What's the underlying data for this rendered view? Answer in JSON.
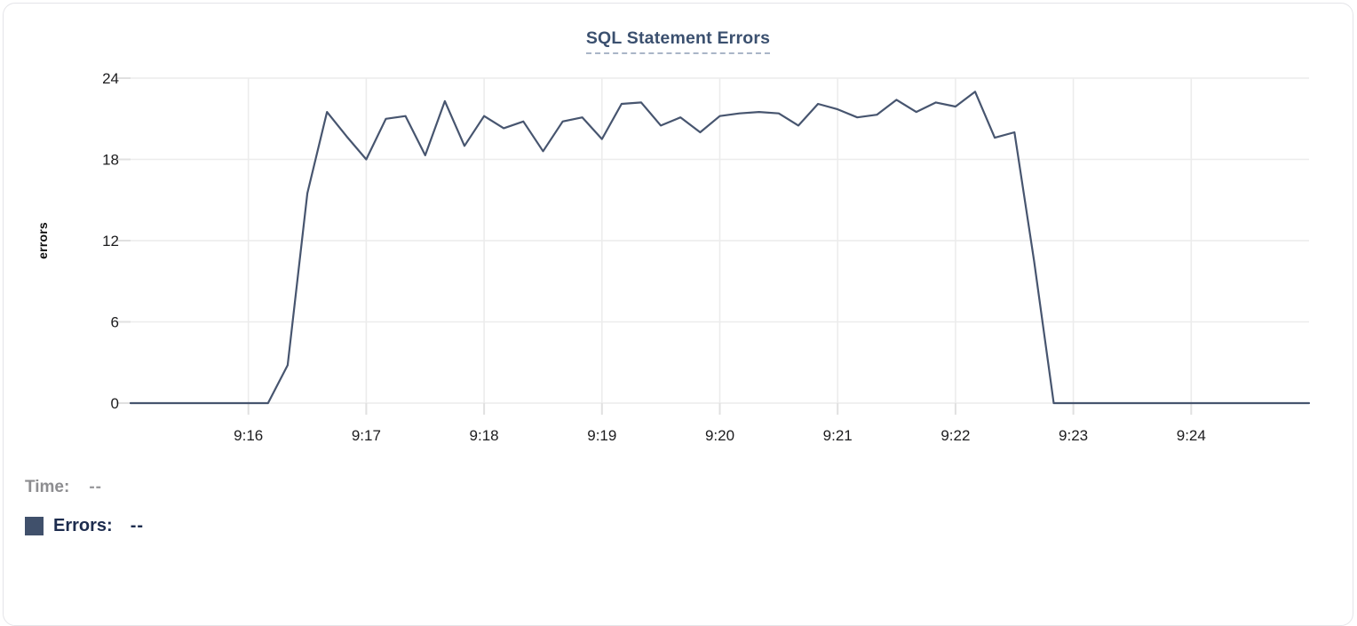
{
  "card": {
    "title": "SQL Statement Errors"
  },
  "legend": {
    "time_label": "Time:",
    "time_value": "--",
    "errors_label": "Errors:",
    "errors_value": "--",
    "swatch_color": "#40506b"
  },
  "colors": {
    "series_line": "#47556f",
    "title_text": "#3b506f",
    "gridline": "#ececec",
    "tick_stub": "#e0e0e0",
    "tick_text": "#1c1c1e"
  },
  "chart_data": {
    "type": "line",
    "title": "SQL Statement Errors",
    "xlabel": "",
    "ylabel": "errors",
    "ylim": [
      0,
      24
    ],
    "yticks": [
      0,
      6,
      12,
      18,
      24
    ],
    "x_tick_labels": [
      "9:16",
      "9:17",
      "9:18",
      "9:19",
      "9:20",
      "9:21",
      "9:22",
      "9:23",
      "9:24"
    ],
    "x_range": [
      "9:15:00",
      "9:25:00"
    ],
    "interval_seconds": 10,
    "grid": true,
    "legend_position": "bottom-left",
    "series_name": "Errors",
    "points": [
      [
        "9:15:00",
        0
      ],
      [
        "9:15:10",
        0
      ],
      [
        "9:15:20",
        0
      ],
      [
        "9:15:30",
        0
      ],
      [
        "9:15:40",
        0
      ],
      [
        "9:15:50",
        0
      ],
      [
        "9:16:00",
        0
      ],
      [
        "9:16:10",
        0
      ],
      [
        "9:16:20",
        2.8
      ],
      [
        "9:16:30",
        15.5
      ],
      [
        "9:16:40",
        21.5
      ],
      [
        "9:16:50",
        19.7
      ],
      [
        "9:17:00",
        18
      ],
      [
        "9:17:10",
        21
      ],
      [
        "9:17:20",
        21.2
      ],
      [
        "9:17:30",
        18.3
      ],
      [
        "9:17:40",
        22.3
      ],
      [
        "9:17:50",
        19
      ],
      [
        "9:18:00",
        21.2
      ],
      [
        "9:18:10",
        20.3
      ],
      [
        "9:18:20",
        20.8
      ],
      [
        "9:18:30",
        18.6
      ],
      [
        "9:18:40",
        20.8
      ],
      [
        "9:18:50",
        21.1
      ],
      [
        "9:19:00",
        19.5
      ],
      [
        "9:19:10",
        22.1
      ],
      [
        "9:19:20",
        22.2
      ],
      [
        "9:19:30",
        20.5
      ],
      [
        "9:19:40",
        21.1
      ],
      [
        "9:19:50",
        20
      ],
      [
        "9:20:00",
        21.2
      ],
      [
        "9:20:10",
        21.4
      ],
      [
        "9:20:20",
        21.5
      ],
      [
        "9:20:30",
        21.4
      ],
      [
        "9:20:40",
        20.5
      ],
      [
        "9:20:50",
        22.1
      ],
      [
        "9:21:00",
        21.7
      ],
      [
        "9:21:10",
        21.1
      ],
      [
        "9:21:20",
        21.3
      ],
      [
        "9:21:30",
        22.4
      ],
      [
        "9:21:40",
        21.5
      ],
      [
        "9:21:50",
        22.2
      ],
      [
        "9:22:00",
        21.9
      ],
      [
        "9:22:10",
        23
      ],
      [
        "9:22:20",
        19.6
      ],
      [
        "9:22:30",
        20
      ],
      [
        "9:22:40",
        10.5
      ],
      [
        "9:22:50",
        0
      ],
      [
        "9:23:00",
        0
      ],
      [
        "9:23:10",
        0
      ],
      [
        "9:23:20",
        0
      ],
      [
        "9:23:30",
        0
      ],
      [
        "9:23:40",
        0
      ],
      [
        "9:23:50",
        0
      ],
      [
        "9:24:00",
        0
      ],
      [
        "9:24:10",
        0
      ],
      [
        "9:24:20",
        0
      ],
      [
        "9:24:30",
        0
      ],
      [
        "9:24:40",
        0
      ],
      [
        "9:24:50",
        0
      ],
      [
        "9:25:00",
        0
      ]
    ]
  }
}
